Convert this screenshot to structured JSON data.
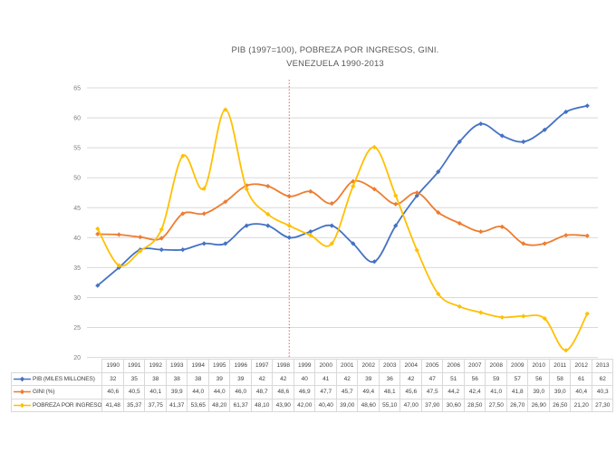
{
  "title": {
    "line1": "PIB (1997=100), POBREZA POR INGRESOS, GINI.",
    "line2": "VENEZUELA 1990-2013"
  },
  "chart_data": {
    "type": "line",
    "title": "PIB (1997=100), POBREZA POR INGRESOS, GINI. VENEZUELA 1990-2013",
    "categories": [
      "1990",
      "1991",
      "1992",
      "1993",
      "1994",
      "1995",
      "1996",
      "1997",
      "1998",
      "1999",
      "2000",
      "2001",
      "2002",
      "2003",
      "2004",
      "2005",
      "2006",
      "2007",
      "2008",
      "2009",
      "2010",
      "2011",
      "2012",
      "2013"
    ],
    "y_axis": {
      "min": 20,
      "max": 65,
      "step": 5
    },
    "grid": true,
    "legend_position": "data-table-left",
    "reference_line": {
      "category": "1999",
      "color": "#C00000",
      "style": "dashed"
    },
    "colors": {
      "pib": "#4472C4",
      "gini": "#ED7D31",
      "pobreza": "#FFC000",
      "gridline": "#D9D9D9",
      "axis_text": "#808080"
    },
    "series": [
      {
        "id": "pib",
        "name": "PIB (MILES MILLONES)",
        "color": "#4472C4",
        "values": [
          32,
          35,
          38,
          38,
          38,
          39,
          39,
          42,
          42,
          40,
          41,
          42,
          39,
          36,
          42,
          47,
          51,
          56,
          59,
          57,
          56,
          58,
          61,
          62
        ],
        "display": [
          "32",
          "35",
          "38",
          "38",
          "38",
          "39",
          "39",
          "42",
          "42",
          "40",
          "41",
          "42",
          "39",
          "36",
          "42",
          "47",
          "51",
          "56",
          "59",
          "57",
          "56",
          "58",
          "61",
          "62"
        ]
      },
      {
        "id": "gini",
        "name": "GINI (%)",
        "color": "#ED7D31",
        "values": [
          40.6,
          40.5,
          40.1,
          39.9,
          44.0,
          44.0,
          46.0,
          48.7,
          48.6,
          46.9,
          47.7,
          45.7,
          49.4,
          48.1,
          45.6,
          47.5,
          44.2,
          42.4,
          41.0,
          41.8,
          39.0,
          39.0,
          40.4,
          40.3
        ],
        "display": [
          "40,6",
          "40,5",
          "40,1",
          "39,9",
          "44,0",
          "44,0",
          "46,0",
          "48,7",
          "48,6",
          "46,9",
          "47,7",
          "45,7",
          "49,4",
          "48,1",
          "45,6",
          "47,5",
          "44,2",
          "42,4",
          "41,0",
          "41,8",
          "39,0",
          "39,0",
          "40,4",
          "40,3"
        ]
      },
      {
        "id": "pobreza",
        "name": "POBREZA POR INGRESO",
        "color": "#FFC000",
        "values": [
          41.48,
          35.37,
          37.75,
          41.37,
          53.65,
          48.2,
          61.37,
          48.1,
          43.9,
          42.0,
          40.4,
          39.0,
          48.6,
          55.1,
          47.0,
          37.9,
          30.6,
          28.5,
          27.5,
          26.7,
          26.9,
          26.5,
          21.2,
          27.3
        ],
        "display": [
          "41,48",
          "35,37",
          "37,75",
          "41,37",
          "53,65",
          "48,20",
          "61,37",
          "48,10",
          "43,90",
          "42,00",
          "40,40",
          "39,00",
          "48,60",
          "55,10",
          "47,00",
          "37,90",
          "30,60",
          "28,50",
          "27,50",
          "26,70",
          "26,90",
          "26,50",
          "21,20",
          "27,30"
        ]
      }
    ]
  }
}
